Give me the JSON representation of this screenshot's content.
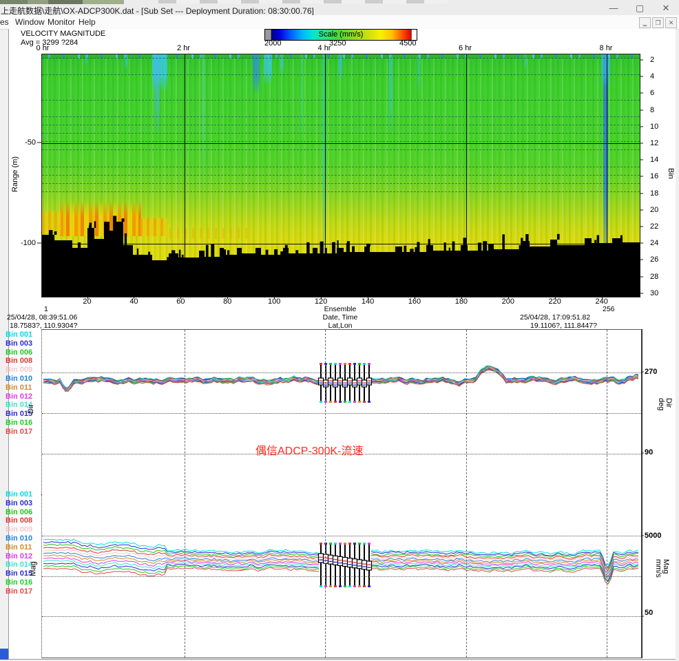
{
  "window": {
    "title": "上走航数据\\走航\\OX-ADCP300K.dat - [Sub Set --- Deployment Duration: 08:30:00.76]",
    "controls": {
      "minimize": "—",
      "maximize": "▢",
      "close": "✕"
    },
    "mdi_controls": {
      "minimize": "‗",
      "restore": "❐",
      "close": "✕"
    }
  },
  "menu": {
    "items": [
      "es",
      "Window",
      "Monitor",
      "Help"
    ]
  },
  "contour": {
    "title": "VELOCITY MAGNITUDE",
    "avg_label": "Avg = 3299 ?284",
    "scale": {
      "title": "Scale (mm/s)",
      "min": "2000",
      "mid": "3250",
      "max": "4500"
    },
    "hour_labels": [
      "0 hr",
      "2 hr",
      "4 hr",
      "6 hr",
      "8 hr"
    ],
    "y_left": {
      "label": "Range (m)",
      "ticks": [
        "-50",
        "-100"
      ]
    },
    "y_right": {
      "label": "Bin",
      "ticks": [
        "2",
        "4",
        "6",
        "8",
        "10",
        "12",
        "14",
        "16",
        "18",
        "20",
        "22",
        "24",
        "26",
        "28",
        "30"
      ]
    },
    "x_ticks": [
      "20",
      "40",
      "60",
      "80",
      "100",
      "120",
      "140",
      "160",
      "180",
      "200",
      "220",
      "240"
    ],
    "footer": {
      "left": {
        "ensemble": "1",
        "datetime": "25/04/28, 08:39:51.06",
        "latlon": "18.7583?, 110.9304?"
      },
      "center": {
        "line1": "Ensemble",
        "line2": "Date, Time",
        "line3": "Lat,Lon"
      },
      "right": {
        "ensemble": "256",
        "datetime": "25/04/28, 17:09:51.82",
        "latlon": "19.1106?, 111.8447?"
      }
    }
  },
  "legend_bins": [
    {
      "label": "Bin 001",
      "color": "#00dde4"
    },
    {
      "label": "Bin 003",
      "color": "#2b2bd0"
    },
    {
      "label": "Bin 006",
      "color": "#1ec41e"
    },
    {
      "label": "Bin 008",
      "color": "#e23434"
    },
    {
      "label": "Bin 009",
      "color": "#f6c6cc"
    },
    {
      "label": "Bin 010",
      "color": "#2a7fd4"
    },
    {
      "label": "Bin 011",
      "color": "#d08a28"
    },
    {
      "label": "Bin 012",
      "color": "#e23ae2"
    },
    {
      "label": "Bin 014",
      "color": "#3fe0cf"
    },
    {
      "label": "Bin 015",
      "color": "#2b2bd0"
    },
    {
      "label": "Bin 016",
      "color": "#22cc22"
    },
    {
      "label": "Bin 017",
      "color": "#e24848"
    }
  ],
  "dir_plot": {
    "left_label": "Dir",
    "right_label_1": "Dir",
    "right_label_2": "deg",
    "tick_top": "270",
    "tick_bottom": "90",
    "annotation": "偶信ADCP-300K-流速"
  },
  "mag_plot": {
    "left_label": "Mag",
    "right_label_1": "Mag",
    "right_label_2": "mm/s",
    "tick_top": "5000",
    "tick_bottom": "50"
  },
  "chart_data": [
    {
      "type": "heatmap",
      "title": "VELOCITY MAGNITUDE",
      "stats_label": "Avg = 3299 ?284",
      "colorbar": {
        "label": "Scale (mm/s)",
        "min": 2000,
        "mid": 3250,
        "max": 4500,
        "colormap": "jet"
      },
      "x_axis": {
        "label": "Ensemble",
        "start": 1,
        "end": 256,
        "ticks": [
          20,
          40,
          60,
          80,
          100,
          120,
          140,
          160,
          180,
          200,
          220,
          240
        ],
        "hours": [
          0,
          2,
          4,
          6,
          8
        ]
      },
      "y_left": {
        "label": "Range (m)",
        "ticks": [
          -50,
          -100
        ]
      },
      "y_right": {
        "label": "Bin",
        "ticks": [
          2,
          4,
          6,
          8,
          10,
          12,
          14,
          16,
          18,
          20,
          22,
          24,
          26,
          28,
          30
        ]
      },
      "start": {
        "datetime": "25/04/28, 08:39:51.06",
        "latlon": "18.7583?, 110.9304?"
      },
      "end": {
        "datetime": "25/04/28, 17:09:51.82",
        "latlon": "19.1106?, 111.8447?"
      },
      "description": "Water-column velocity magnitude ~2800-3600 mm/s (green) in upper bins, increasing to ~4000-4500 mm/s (yellow/orange) near -80 to -100 m on the left quarter; black jagged region below ~-95 to -120 m is the seabed; sparse cyan/blue low-velocity streaks near 2000-2600 mm/s, strongest near 8 hr"
    },
    {
      "type": "line",
      "name": "Dir",
      "ylabel": "Dir deg",
      "yticks": [
        270,
        90
      ],
      "series_bins": [
        "Bin 001",
        "Bin 003",
        "Bin 006",
        "Bin 008",
        "Bin 009",
        "Bin 010",
        "Bin 011",
        "Bin 012",
        "Bin 014",
        "Bin 015",
        "Bin 016",
        "Bin 017"
      ],
      "approx_values_deg": [
        252,
        250,
        255,
        254,
        253,
        255,
        250,
        254,
        253,
        268,
        252,
        252,
        251,
        258
      ],
      "note": "all bins overlap near 250-260 deg; box/whisker markers replace lines near ensembles 120-140; small peak toward 270 near 6.3 hr"
    },
    {
      "type": "line",
      "name": "Mag",
      "ylabel": "Mag mm/s",
      "yticks": [
        5000,
        50
      ],
      "series_bins": [
        "Bin 001",
        "Bin 003",
        "Bin 006",
        "Bin 008",
        "Bin 009",
        "Bin 010",
        "Bin 011",
        "Bin 012",
        "Bin 014",
        "Bin 015",
        "Bin 016",
        "Bin 017"
      ],
      "approx_values_mms": [
        3600,
        3550,
        3300,
        3250,
        3300,
        3300,
        3280,
        3300,
        3320,
        3400,
        3500,
        3520,
        3450,
        3600
      ],
      "note": "band of 12 overlapping bin traces ~3000-3700 mm/s; box/whisker markers near ensembles 120-140; sharp dip near 8 hr"
    }
  ]
}
